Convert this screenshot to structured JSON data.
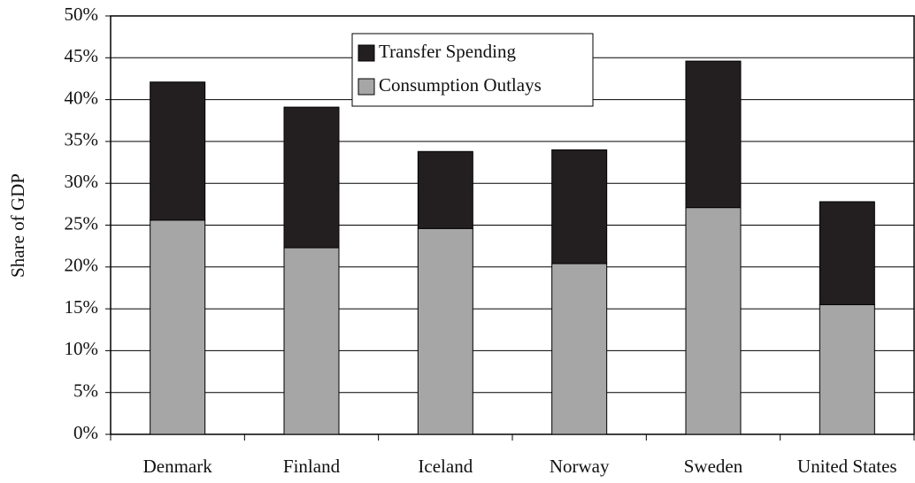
{
  "chart_data": {
    "type": "stacked_bar",
    "y_axis_label": "Share of GDP",
    "categories": [
      "Denmark",
      "Finland",
      "Iceland",
      "Norway",
      "Sweden",
      "United States"
    ],
    "series": [
      {
        "name": "Consumption Outlays",
        "color": "#a6a6a6",
        "values": [
          25.6,
          22.3,
          24.6,
          20.4,
          27.1,
          15.5
        ]
      },
      {
        "name": "Transfer Spending",
        "color": "#231f20",
        "values": [
          16.5,
          16.8,
          9.2,
          13.6,
          17.5,
          12.3
        ]
      }
    ],
    "ylim": [
      0,
      50
    ],
    "yticks": [
      {
        "value": 0,
        "label": "0%"
      },
      {
        "value": 5,
        "label": "5%"
      },
      {
        "value": 10,
        "label": "10%"
      },
      {
        "value": 15,
        "label": "15%"
      },
      {
        "value": 20,
        "label": "20%"
      },
      {
        "value": 25,
        "label": "25%"
      },
      {
        "value": 30,
        "label": "30%"
      },
      {
        "value": 35,
        "label": "35%"
      },
      {
        "value": 40,
        "label": "40%"
      },
      {
        "value": 45,
        "label": "45%"
      },
      {
        "value": 50,
        "label": "50%"
      }
    ],
    "grid": true
  }
}
